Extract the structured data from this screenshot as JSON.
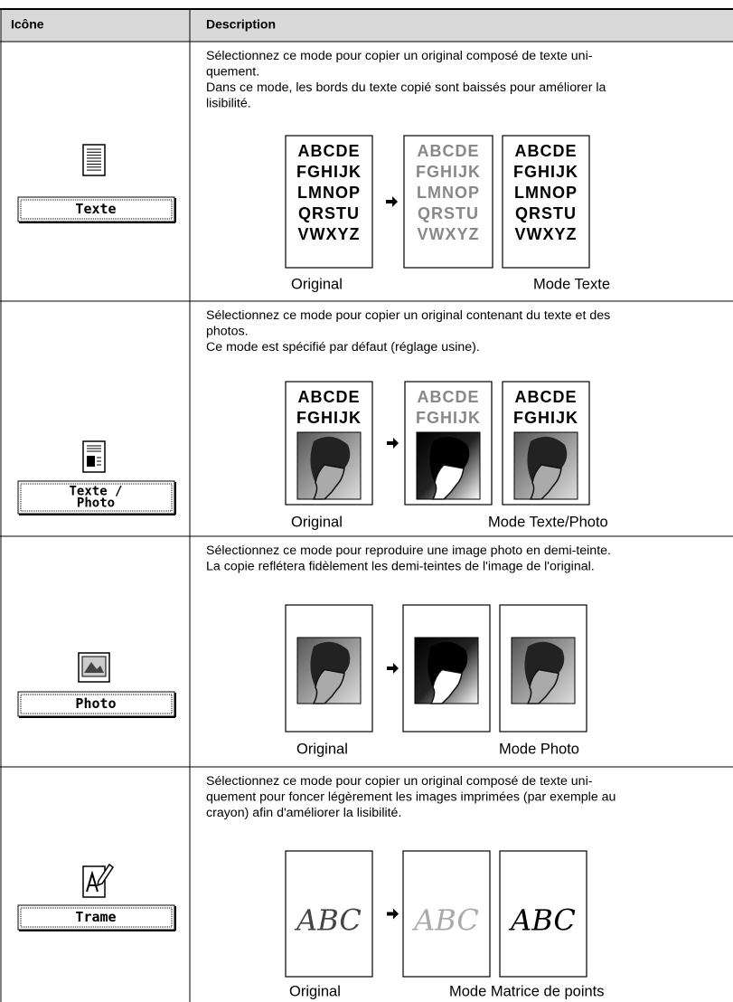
{
  "table": {
    "headers": [
      "Icône",
      "Description"
    ],
    "rows": [
      {
        "button": [
          "Texte"
        ],
        "lines": [
          "Sélectionnez ce mode pour copier un original composé de texte uni-",
          "quement.",
          "Dans ce mode, les bords du texte copié sont baissés pour améliorer la",
          "lisibilité."
        ],
        "sample": [
          "ABCDE",
          "FGHIJK",
          "LMNOP",
          "QRSTU",
          "VWXYZ"
        ],
        "captions": [
          "Original",
          "Mode Texte"
        ]
      },
      {
        "button": [
          "Texte /",
          "Photo"
        ],
        "lines": [
          "Sélectionnez ce mode pour copier un original contenant du texte et des",
          "photos.",
          "Ce mode est spécifié par défaut (réglage usine)."
        ],
        "sample": [
          "ABCDE",
          "FGHIJK"
        ],
        "captions": [
          "Original",
          "Mode Texte/Photo"
        ]
      },
      {
        "button": [
          "Photo"
        ],
        "lines": [
          "Sélectionnez ce mode pour reproduire une image photo en demi-teinte.",
          "La copie reflétera fidèlement les demi-teintes de l'image de l'original."
        ],
        "captions": [
          "Original",
          "Mode Photo"
        ]
      },
      {
        "button": [
          "Trame"
        ],
        "lines": [
          "Sélectionnez ce mode pour copier un original composé de texte uni-",
          "quement pour foncer légèrement les images imprimées (par exemple au",
          "crayon) afin d'améliorer la lisibilité."
        ],
        "sample": [
          "ABC"
        ],
        "captions": [
          "Original",
          "Mode Matrice de points"
        ]
      }
    ]
  }
}
